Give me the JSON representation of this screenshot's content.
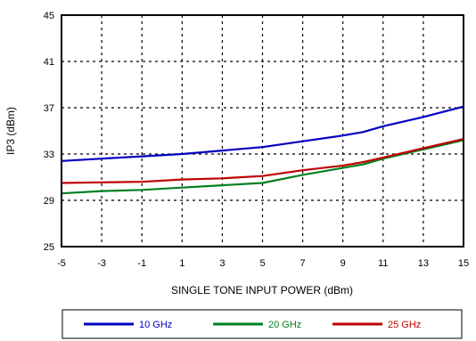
{
  "chart_data": {
    "type": "line",
    "xlabel": "SINGLE TONE INPUT POWER (dBm)",
    "ylabel": "IP3 (dBm)",
    "xlim": [
      -5,
      15
    ],
    "ylim": [
      25,
      45
    ],
    "xticks": [
      "-5",
      "-3",
      "-1",
      "1",
      "3",
      "5",
      "7",
      "9",
      "11",
      "13",
      "15"
    ],
    "yticks": [
      "25",
      "29",
      "33",
      "37",
      "41",
      "45"
    ],
    "grid": true,
    "legend_position": "bottom",
    "series": [
      {
        "name": "10 GHz",
        "color": "#0000c0",
        "x": [
          -5,
          -3,
          -1,
          1,
          3,
          5,
          7,
          9,
          10,
          11,
          13,
          15
        ],
        "y": [
          32.4,
          32.6,
          32.8,
          33.0,
          33.3,
          33.6,
          34.1,
          34.6,
          34.9,
          35.4,
          36.2,
          37.1
        ]
      },
      {
        "name": "20 GHz",
        "color": "#008020",
        "x": [
          -5,
          -3,
          -1,
          1,
          3,
          5,
          7,
          9,
          10,
          11,
          13,
          15
        ],
        "y": [
          29.6,
          29.8,
          29.9,
          30.1,
          30.3,
          30.5,
          31.2,
          31.8,
          32.1,
          32.6,
          33.4,
          34.2
        ]
      },
      {
        "name": "25 GHz",
        "color": "#c00000",
        "x": [
          -5,
          -3,
          -1,
          1,
          3,
          5,
          7,
          9,
          10,
          11,
          13,
          15
        ],
        "y": [
          30.5,
          30.55,
          30.6,
          30.8,
          30.9,
          31.1,
          31.6,
          32.0,
          32.3,
          32.7,
          33.5,
          34.3
        ]
      }
    ]
  }
}
